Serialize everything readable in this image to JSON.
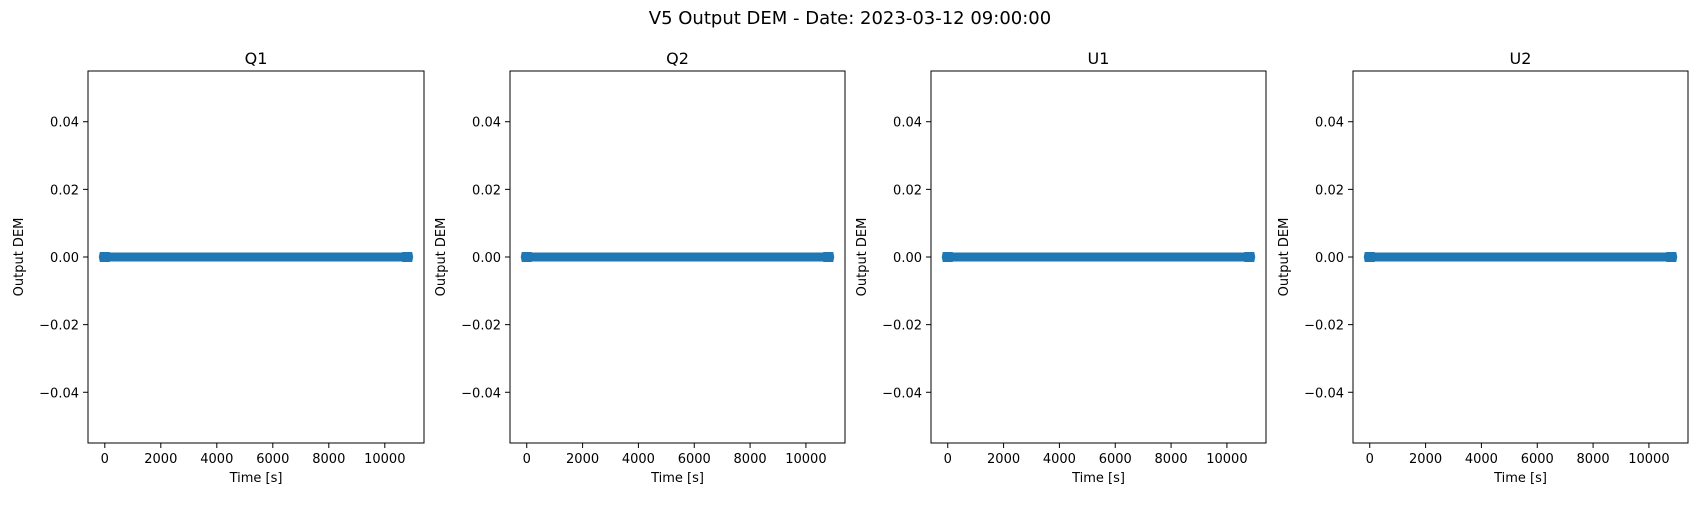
{
  "figure": {
    "title": "V5 Output DEM - Date: 2023-03-12 09:00:00"
  },
  "chart_data": [
    {
      "type": "line",
      "title": "Q1",
      "xlabel": "Time [s]",
      "ylabel": "Output DEM",
      "xlim": [
        -600,
        11400
      ],
      "ylim": [
        -0.055,
        0.055
      ],
      "xticks": [
        0,
        2000,
        4000,
        6000,
        8000,
        10000
      ],
      "yticks": [
        -0.04,
        -0.02,
        0.0,
        0.02,
        0.04
      ],
      "grid": false,
      "series": [
        {
          "color": "#1f77b4",
          "marker": "star",
          "x_range": [
            0,
            10800
          ],
          "y_value": 0.0
        }
      ]
    },
    {
      "type": "line",
      "title": "Q2",
      "xlabel": "Time [s]",
      "ylabel": "Output DEM",
      "xlim": [
        -600,
        11400
      ],
      "ylim": [
        -0.055,
        0.055
      ],
      "xticks": [
        0,
        2000,
        4000,
        6000,
        8000,
        10000
      ],
      "yticks": [
        -0.04,
        -0.02,
        0.0,
        0.02,
        0.04
      ],
      "grid": false,
      "series": [
        {
          "color": "#1f77b4",
          "marker": "star",
          "x_range": [
            0,
            10800
          ],
          "y_value": 0.0
        }
      ]
    },
    {
      "type": "line",
      "title": "U1",
      "xlabel": "Time [s]",
      "ylabel": "Output DEM",
      "xlim": [
        -600,
        11400
      ],
      "ylim": [
        -0.055,
        0.055
      ],
      "xticks": [
        0,
        2000,
        4000,
        6000,
        8000,
        10000
      ],
      "yticks": [
        -0.04,
        -0.02,
        0.0,
        0.02,
        0.04
      ],
      "grid": false,
      "series": [
        {
          "color": "#1f77b4",
          "marker": "star",
          "x_range": [
            0,
            10800
          ],
          "y_value": 0.0
        }
      ]
    },
    {
      "type": "line",
      "title": "U2",
      "xlabel": "Time [s]",
      "ylabel": "Output DEM",
      "xlim": [
        -600,
        11400
      ],
      "ylim": [
        -0.055,
        0.055
      ],
      "xticks": [
        0,
        2000,
        4000,
        6000,
        8000,
        10000
      ],
      "yticks": [
        -0.04,
        -0.02,
        0.0,
        0.02,
        0.04
      ],
      "grid": false,
      "series": [
        {
          "color": "#1f77b4",
          "marker": "star",
          "x_range": [
            0,
            10800
          ],
          "y_value": 0.0
        }
      ]
    }
  ]
}
